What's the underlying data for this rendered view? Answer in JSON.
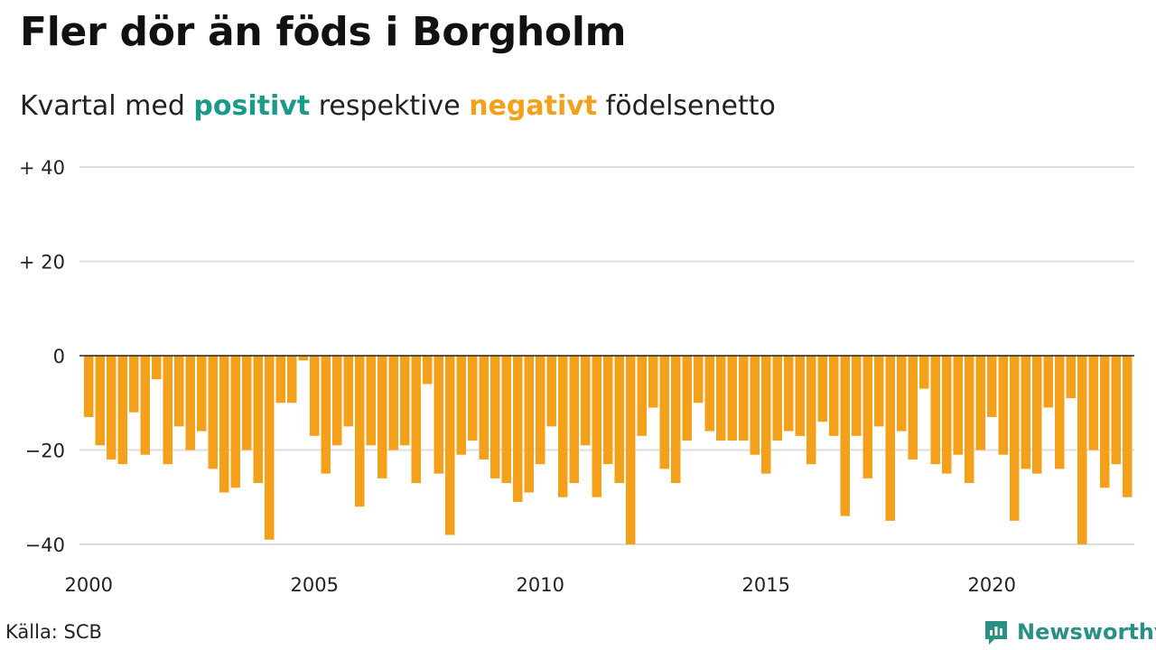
{
  "header": {
    "title": "Fler dör än föds i Borgholm",
    "subtitle_prefix": "Kvartal med ",
    "subtitle_positive": "positivt",
    "subtitle_middle": " respektive ",
    "subtitle_negative": "negativt",
    "subtitle_suffix": " födelsenetto"
  },
  "footer": {
    "source": "Källa: SCB",
    "brand": "Newsworthy"
  },
  "colors": {
    "positive": "#1a9a8a",
    "negative": "#f5a01a",
    "grid": "#dddddd",
    "baseline": "#222222",
    "brand": "#2a8f85"
  },
  "chart_data": {
    "type": "bar",
    "x_start": "2000 Q1",
    "xticks": [
      2000,
      2005,
      2010,
      2015,
      2020
    ],
    "yticks": [
      {
        "value": 40,
        "label": "+ 40"
      },
      {
        "value": 20,
        "label": "+ 20"
      },
      {
        "value": 0,
        "label": "0"
      },
      {
        "value": -20,
        "label": "−20"
      },
      {
        "value": -40,
        "label": "−40"
      }
    ],
    "ylim": [
      -40,
      40
    ],
    "grid": true,
    "values": [
      -13,
      -19,
      -22,
      -23,
      -12,
      -21,
      -5,
      -23,
      -15,
      -20,
      -16,
      -24,
      -29,
      -28,
      -20,
      -27,
      -39,
      -10,
      -10,
      -1,
      -17,
      -25,
      -19,
      -15,
      -32,
      -19,
      -26,
      -20,
      -19,
      -27,
      -6,
      -25,
      -38,
      -21,
      -18,
      -22,
      -26,
      -27,
      -31,
      -29,
      -23,
      -15,
      -30,
      -27,
      -19,
      -30,
      -23,
      -27,
      -40,
      -17,
      -11,
      -24,
      -27,
      -18,
      -10,
      -16,
      -18,
      -18,
      -18,
      -21,
      -25,
      -18,
      -16,
      -17,
      -23,
      -14,
      -17,
      -34,
      -17,
      -26,
      -15,
      -35,
      -16,
      -22,
      -7,
      -23,
      -25,
      -21,
      -27,
      -20,
      -13,
      -21,
      -35,
      -24,
      -25,
      -11,
      -24,
      -9,
      -40,
      -20,
      -28,
      -23,
      -30
    ]
  }
}
